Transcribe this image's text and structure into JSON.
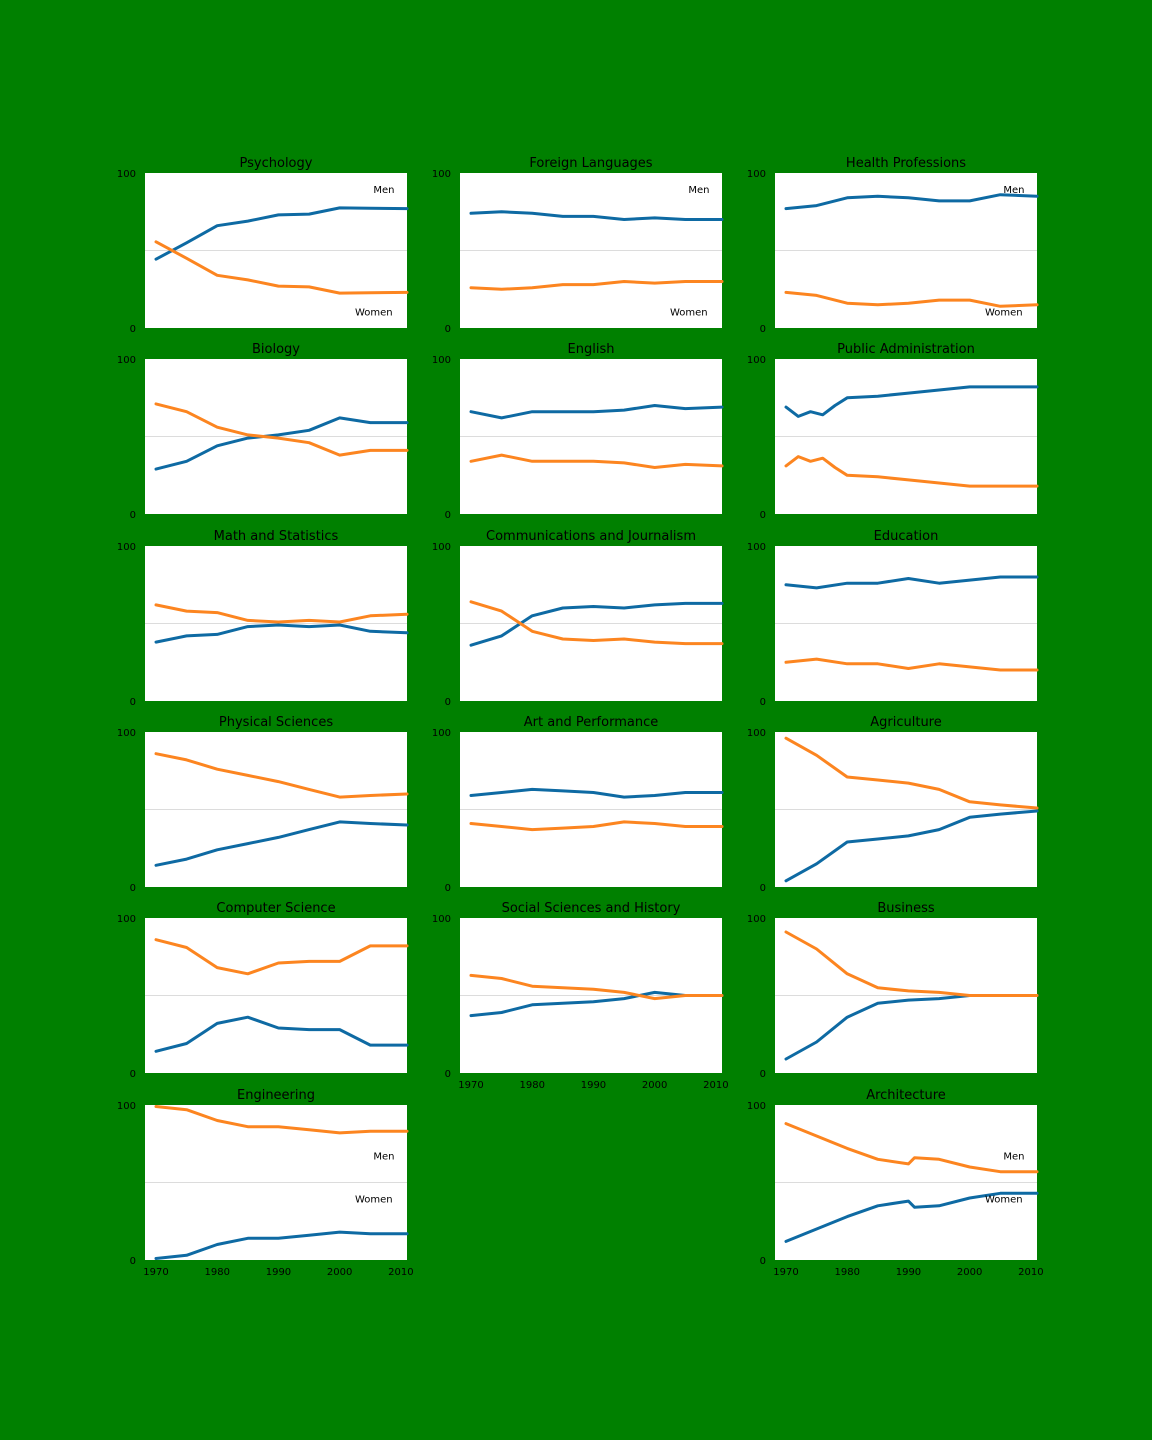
{
  "figure": {
    "background": "#008000",
    "series_colors": [
      "#0e6aa3",
      "#fc8520"
    ]
  },
  "chart_data": [
    {
      "type": "line",
      "title": "Psychology",
      "x": [
        1970,
        1975,
        1980,
        1985,
        1990,
        1995,
        2000,
        2005,
        2011
      ],
      "xlim": [
        1968.2,
        2011
      ],
      "ylim": [
        0,
        100
      ],
      "yticks": [
        "0",
        "100"
      ],
      "xticks": [],
      "grid_y": [
        50
      ],
      "series": [
        {
          "name": "Men",
          "values": [
            44.4,
            55,
            66,
            69,
            73,
            73.5,
            77.5,
            77.2,
            77
          ]
        },
        {
          "name": "Women",
          "values": [
            55.6,
            45,
            34,
            31,
            27,
            26.5,
            22.5,
            22.8,
            23
          ]
        }
      ],
      "annotations": [
        {
          "text": "Men",
          "x": 2005.5,
          "y": 87
        },
        {
          "text": "Women",
          "x": 2002.5,
          "y": 8
        }
      ]
    },
    {
      "type": "line",
      "title": "Foreign Languages",
      "x": [
        1970,
        1975,
        1980,
        1985,
        1990,
        1995,
        2000,
        2005,
        2011
      ],
      "xlim": [
        1968.2,
        2011
      ],
      "ylim": [
        0,
        100
      ],
      "yticks": [
        "0",
        "100"
      ],
      "xticks": [],
      "grid_y": [
        50
      ],
      "series": [
        {
          "name": "Men",
          "values": [
            74,
            75,
            74,
            72,
            72,
            70,
            71,
            70,
            70
          ]
        },
        {
          "name": "Women",
          "values": [
            26,
            25,
            26,
            28,
            28,
            30,
            29,
            30,
            30
          ]
        }
      ],
      "annotations": [
        {
          "text": "Men",
          "x": 2005.5,
          "y": 87
        },
        {
          "text": "Women",
          "x": 2002.5,
          "y": 8
        }
      ]
    },
    {
      "type": "line",
      "title": "Health Professions",
      "x": [
        1970,
        1975,
        1980,
        1985,
        1990,
        1995,
        2000,
        2005,
        2011
      ],
      "xlim": [
        1968.2,
        2011
      ],
      "ylim": [
        0,
        100
      ],
      "yticks": [
        "0",
        "100"
      ],
      "xticks": [],
      "grid_y": [
        50
      ],
      "series": [
        {
          "name": "Men",
          "values": [
            77,
            79,
            84,
            85,
            84,
            82,
            82,
            86,
            85
          ]
        },
        {
          "name": "Women",
          "values": [
            23,
            21,
            16,
            15,
            16,
            18,
            18,
            14,
            15
          ]
        }
      ],
      "annotations": [
        {
          "text": "Men",
          "x": 2005.5,
          "y": 87
        },
        {
          "text": "Women",
          "x": 2002.5,
          "y": 8
        }
      ]
    },
    {
      "type": "line",
      "title": "Biology",
      "x": [
        1970,
        1975,
        1980,
        1985,
        1990,
        1995,
        2000,
        2005,
        2011
      ],
      "xlim": [
        1968.2,
        2011
      ],
      "ylim": [
        0,
        100
      ],
      "yticks": [
        "0",
        "100"
      ],
      "xticks": [],
      "grid_y": [
        50
      ],
      "series": [
        {
          "name": "Men",
          "values": [
            29,
            34,
            44,
            49,
            51,
            54,
            62,
            59,
            59
          ]
        },
        {
          "name": "Women",
          "values": [
            71,
            66,
            56,
            51,
            49,
            46,
            38,
            41,
            41
          ]
        }
      ],
      "annotations": []
    },
    {
      "type": "line",
      "title": "English",
      "x": [
        1970,
        1975,
        1980,
        1985,
        1990,
        1995,
        2000,
        2005,
        2011
      ],
      "xlim": [
        1968.2,
        2011
      ],
      "ylim": [
        0,
        100
      ],
      "yticks": [
        "0",
        "100"
      ],
      "xticks": [],
      "grid_y": [
        50
      ],
      "series": [
        {
          "name": "Men",
          "values": [
            66,
            62,
            66,
            66,
            66,
            67,
            70,
            68,
            69
          ]
        },
        {
          "name": "Women",
          "values": [
            34,
            38,
            34,
            34,
            34,
            33,
            30,
            32,
            31
          ]
        }
      ],
      "annotations": []
    },
    {
      "type": "line",
      "title": "Public Administration",
      "x": [
        1970,
        1972,
        1974,
        1976,
        1978,
        1980,
        1985,
        1990,
        1995,
        2000,
        2005,
        2011
      ],
      "xlim": [
        1968.2,
        2011
      ],
      "ylim": [
        0,
        100
      ],
      "yticks": [
        "0",
        "100"
      ],
      "xticks": [],
      "grid_y": [
        50
      ],
      "series": [
        {
          "name": "Men",
          "values": [
            69,
            63,
            66,
            64,
            70,
            75,
            76,
            78,
            80,
            82,
            82,
            82
          ]
        },
        {
          "name": "Women",
          "values": [
            31,
            37,
            34,
            36,
            30,
            25,
            24,
            22,
            20,
            18,
            18,
            18
          ]
        }
      ],
      "annotations": []
    },
    {
      "type": "line",
      "title": "Math and Statistics",
      "x": [
        1970,
        1975,
        1980,
        1985,
        1990,
        1995,
        2000,
        2005,
        2011
      ],
      "xlim": [
        1968.2,
        2011
      ],
      "ylim": [
        0,
        100
      ],
      "yticks": [
        "0",
        "100"
      ],
      "xticks": [],
      "grid_y": [
        50
      ],
      "series": [
        {
          "name": "Men",
          "values": [
            38,
            42,
            43,
            48,
            49,
            48,
            49,
            45,
            44
          ]
        },
        {
          "name": "Women",
          "values": [
            62,
            58,
            57,
            52,
            51,
            52,
            51,
            55,
            56
          ]
        }
      ],
      "annotations": []
    },
    {
      "type": "line",
      "title": "Communications and Journalism",
      "x": [
        1970,
        1975,
        1980,
        1985,
        1990,
        1995,
        2000,
        2005,
        2011
      ],
      "xlim": [
        1968.2,
        2011
      ],
      "ylim": [
        0,
        100
      ],
      "yticks": [
        "0",
        "100"
      ],
      "xticks": [],
      "grid_y": [
        50
      ],
      "series": [
        {
          "name": "Men",
          "values": [
            36,
            42,
            55,
            60,
            61,
            60,
            62,
            63,
            63
          ]
        },
        {
          "name": "Women",
          "values": [
            64,
            58,
            45,
            40,
            39,
            40,
            38,
            37,
            37
          ]
        }
      ],
      "annotations": []
    },
    {
      "type": "line",
      "title": "Education",
      "x": [
        1970,
        1975,
        1980,
        1985,
        1990,
        1995,
        2000,
        2005,
        2011
      ],
      "xlim": [
        1968.2,
        2011
      ],
      "ylim": [
        0,
        100
      ],
      "yticks": [
        "0",
        "100"
      ],
      "xticks": [],
      "grid_y": [
        50
      ],
      "series": [
        {
          "name": "Men",
          "values": [
            75,
            73,
            76,
            76,
            79,
            76,
            78,
            80,
            80
          ]
        },
        {
          "name": "Women",
          "values": [
            25,
            27,
            24,
            24,
            21,
            24,
            22,
            20,
            20
          ]
        }
      ],
      "annotations": []
    },
    {
      "type": "line",
      "title": "Physical Sciences",
      "x": [
        1970,
        1975,
        1980,
        1985,
        1990,
        1995,
        2000,
        2005,
        2011
      ],
      "xlim": [
        1968.2,
        2011
      ],
      "ylim": [
        0,
        100
      ],
      "yticks": [
        "0",
        "100"
      ],
      "xticks": [],
      "grid_y": [
        50
      ],
      "series": [
        {
          "name": "Men",
          "values": [
            14,
            18,
            24,
            28,
            32,
            37,
            42,
            41,
            40
          ]
        },
        {
          "name": "Women",
          "values": [
            86,
            82,
            76,
            72,
            68,
            63,
            58,
            59,
            60
          ]
        }
      ],
      "annotations": []
    },
    {
      "type": "line",
      "title": "Art and Performance",
      "x": [
        1970,
        1975,
        1980,
        1985,
        1990,
        1995,
        2000,
        2005,
        2011
      ],
      "xlim": [
        1968.2,
        2011
      ],
      "ylim": [
        0,
        100
      ],
      "yticks": [
        "0",
        "100"
      ],
      "xticks": [],
      "grid_y": [
        50
      ],
      "series": [
        {
          "name": "Men",
          "values": [
            59,
            61,
            63,
            62,
            61,
            58,
            59,
            61,
            61
          ]
        },
        {
          "name": "Women",
          "values": [
            41,
            39,
            37,
            38,
            39,
            42,
            41,
            39,
            39
          ]
        }
      ],
      "annotations": []
    },
    {
      "type": "line",
      "title": "Agriculture",
      "x": [
        1970,
        1975,
        1980,
        1985,
        1990,
        1995,
        2000,
        2005,
        2011
      ],
      "xlim": [
        1968.2,
        2011
      ],
      "ylim": [
        0,
        100
      ],
      "yticks": [
        "0",
        "100"
      ],
      "xticks": [],
      "grid_y": [
        50
      ],
      "series": [
        {
          "name": "Men",
          "values": [
            4,
            15,
            29,
            31,
            33,
            37,
            45,
            47,
            49
          ]
        },
        {
          "name": "Women",
          "values": [
            96,
            85,
            71,
            69,
            67,
            63,
            55,
            53,
            51
          ]
        }
      ],
      "annotations": []
    },
    {
      "type": "line",
      "title": "Computer Science",
      "x": [
        1970,
        1975,
        1980,
        1985,
        1990,
        1995,
        2000,
        2005,
        2011
      ],
      "xlim": [
        1968.2,
        2011
      ],
      "ylim": [
        0,
        100
      ],
      "yticks": [
        "0",
        "100"
      ],
      "xticks": [],
      "grid_y": [
        50
      ],
      "series": [
        {
          "name": "Men",
          "values": [
            14,
            19,
            32,
            36,
            29,
            28,
            28,
            18,
            18
          ]
        },
        {
          "name": "Women",
          "values": [
            86,
            81,
            68,
            64,
            71,
            72,
            72,
            82,
            82
          ]
        }
      ],
      "annotations": []
    },
    {
      "type": "line",
      "title": "Social Sciences and History",
      "x": [
        1970,
        1975,
        1980,
        1985,
        1990,
        1995,
        2000,
        2005,
        2011
      ],
      "xlim": [
        1968.2,
        2011
      ],
      "ylim": [
        0,
        100
      ],
      "yticks": [
        "0",
        "100"
      ],
      "xticks": [
        "1970",
        "1980",
        "1990",
        "2000",
        "2010"
      ],
      "grid_y": [
        50
      ],
      "series": [
        {
          "name": "Men",
          "values": [
            37,
            39,
            44,
            45,
            46,
            48,
            52,
            50,
            50
          ]
        },
        {
          "name": "Women",
          "values": [
            63,
            61,
            56,
            55,
            54,
            52,
            48,
            50,
            50
          ]
        }
      ],
      "annotations": []
    },
    {
      "type": "line",
      "title": "Business",
      "x": [
        1970,
        1975,
        1980,
        1985,
        1990,
        1995,
        2000,
        2005,
        2011
      ],
      "xlim": [
        1968.2,
        2011
      ],
      "ylim": [
        0,
        100
      ],
      "yticks": [
        "0",
        "100"
      ],
      "xticks": [],
      "grid_y": [
        50
      ],
      "series": [
        {
          "name": "Men",
          "values": [
            9,
            20,
            36,
            45,
            47,
            48,
            50,
            50,
            50
          ]
        },
        {
          "name": "Women",
          "values": [
            91,
            80,
            64,
            55,
            53,
            52,
            50,
            50,
            50
          ]
        }
      ],
      "annotations": []
    },
    {
      "type": "line",
      "title": "Engineering",
      "x": [
        1970,
        1975,
        1980,
        1985,
        1990,
        1995,
        2000,
        2005,
        2011
      ],
      "xlim": [
        1968.2,
        2011
      ],
      "ylim": [
        0,
        100
      ],
      "yticks": [
        "0",
        "100"
      ],
      "xticks": [
        "1970",
        "1980",
        "1990",
        "2000",
        "2010"
      ],
      "grid_y": [
        50
      ],
      "series": [
        {
          "name": "Men",
          "values": [
            1,
            3,
            10,
            14,
            14,
            16,
            18,
            17,
            17
          ]
        },
        {
          "name": "Women",
          "values": [
            99,
            97,
            90,
            86,
            86,
            84,
            82,
            83,
            83
          ]
        }
      ],
      "annotations": [
        {
          "text": "Men",
          "x": 2005.5,
          "y": 65
        },
        {
          "text": "Women",
          "x": 2002.5,
          "y": 37
        }
      ]
    },
    {
      "type": "line",
      "title": "Architecture",
      "x": [
        1970,
        1975,
        1980,
        1985,
        1990,
        1991,
        1995,
        2000,
        2005,
        2011
      ],
      "xlim": [
        1968.2,
        2011
      ],
      "ylim": [
        0,
        100
      ],
      "yticks": [
        "0",
        "100"
      ],
      "xticks": [
        "1970",
        "1980",
        "1990",
        "2000",
        "2010"
      ],
      "grid_y": [
        50
      ],
      "series": [
        {
          "name": "Men",
          "values": [
            12,
            20,
            28,
            35,
            38,
            34,
            35,
            40,
            43,
            43
          ]
        },
        {
          "name": "Women",
          "values": [
            88,
            80,
            72,
            65,
            62,
            66,
            65,
            60,
            57,
            57
          ]
        }
      ],
      "annotations": [
        {
          "text": "Men",
          "x": 2005.5,
          "y": 65
        },
        {
          "text": "Women",
          "x": 2002.5,
          "y": 37
        }
      ]
    }
  ]
}
